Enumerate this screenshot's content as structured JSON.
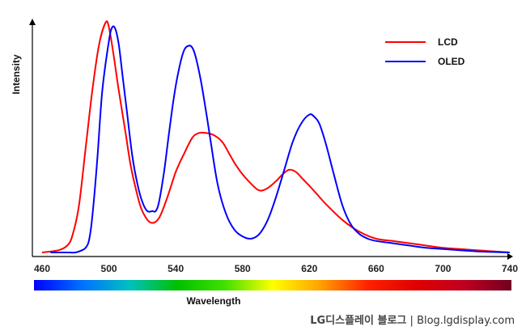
{
  "chart_data": {
    "type": "line",
    "title": "",
    "xlabel": "Wavelength",
    "ylabel": "Intensity",
    "xlim": [
      460,
      740
    ],
    "ylim": [
      0,
      1
    ],
    "xticks": [
      460,
      500,
      540,
      580,
      620,
      660,
      700,
      740
    ],
    "grid": false,
    "legend_position": "top-right",
    "series": [
      {
        "name": "LCD",
        "color": "#ff0000",
        "x": [
          460,
          470,
          475,
          478,
          482,
          486,
          490,
          494,
          498,
          500,
          503,
          506,
          510,
          513,
          517,
          520,
          525,
          530,
          535,
          540,
          545,
          550,
          554,
          558,
          563,
          568,
          572,
          576,
          580,
          585,
          590,
          595,
          600,
          604,
          608,
          612,
          616,
          620,
          625,
          630,
          640,
          650,
          660,
          670,
          680,
          690,
          700,
          710,
          720,
          730,
          740
        ],
        "y": [
          0.0,
          0.01,
          0.03,
          0.07,
          0.2,
          0.45,
          0.7,
          0.9,
          1.0,
          0.98,
          0.85,
          0.7,
          0.52,
          0.38,
          0.25,
          0.18,
          0.13,
          0.15,
          0.24,
          0.35,
          0.43,
          0.5,
          0.52,
          0.52,
          0.51,
          0.48,
          0.43,
          0.38,
          0.34,
          0.3,
          0.27,
          0.28,
          0.31,
          0.34,
          0.36,
          0.35,
          0.32,
          0.29,
          0.25,
          0.21,
          0.14,
          0.09,
          0.06,
          0.05,
          0.04,
          0.03,
          0.02,
          0.015,
          0.01,
          0.005,
          0.0
        ]
      },
      {
        "name": "OLED",
        "color": "#0000ff",
        "x": [
          465,
          475,
          480,
          484,
          486,
          488,
          490,
          493,
          496,
          500,
          502,
          504,
          506,
          508,
          511,
          514,
          517,
          520,
          523,
          526,
          528,
          530,
          533,
          536,
          539,
          542,
          545,
          548,
          550,
          552,
          555,
          558,
          561,
          565,
          570,
          575,
          580,
          585,
          590,
          595,
          600,
          605,
          610,
          615,
          620,
          623,
          626,
          630,
          635,
          640,
          645,
          650,
          655,
          660,
          670,
          680,
          690,
          700,
          710,
          720,
          730,
          740
        ],
        "y": [
          0.0,
          0.0,
          0.0,
          0.01,
          0.02,
          0.05,
          0.15,
          0.4,
          0.7,
          0.92,
          0.98,
          0.97,
          0.9,
          0.78,
          0.6,
          0.42,
          0.3,
          0.22,
          0.18,
          0.18,
          0.18,
          0.22,
          0.35,
          0.52,
          0.68,
          0.8,
          0.88,
          0.9,
          0.89,
          0.85,
          0.75,
          0.62,
          0.48,
          0.3,
          0.17,
          0.1,
          0.07,
          0.06,
          0.08,
          0.14,
          0.24,
          0.36,
          0.48,
          0.56,
          0.6,
          0.59,
          0.56,
          0.47,
          0.33,
          0.2,
          0.12,
          0.08,
          0.06,
          0.05,
          0.04,
          0.03,
          0.02,
          0.015,
          0.01,
          0.005,
          0.002,
          0.0
        ]
      }
    ]
  },
  "spectrum_bar": {
    "colors": [
      "#0000ff",
      "#0070ff",
      "#00c0c0",
      "#00c000",
      "#40e000",
      "#ffff00",
      "#ffa000",
      "#ff2000",
      "#e00000",
      "#c00020",
      "#700020"
    ]
  },
  "footer": {
    "brand": "LG디스플레이 블로그",
    "separator": "|",
    "site": "Blog.lgdisplay.com"
  }
}
